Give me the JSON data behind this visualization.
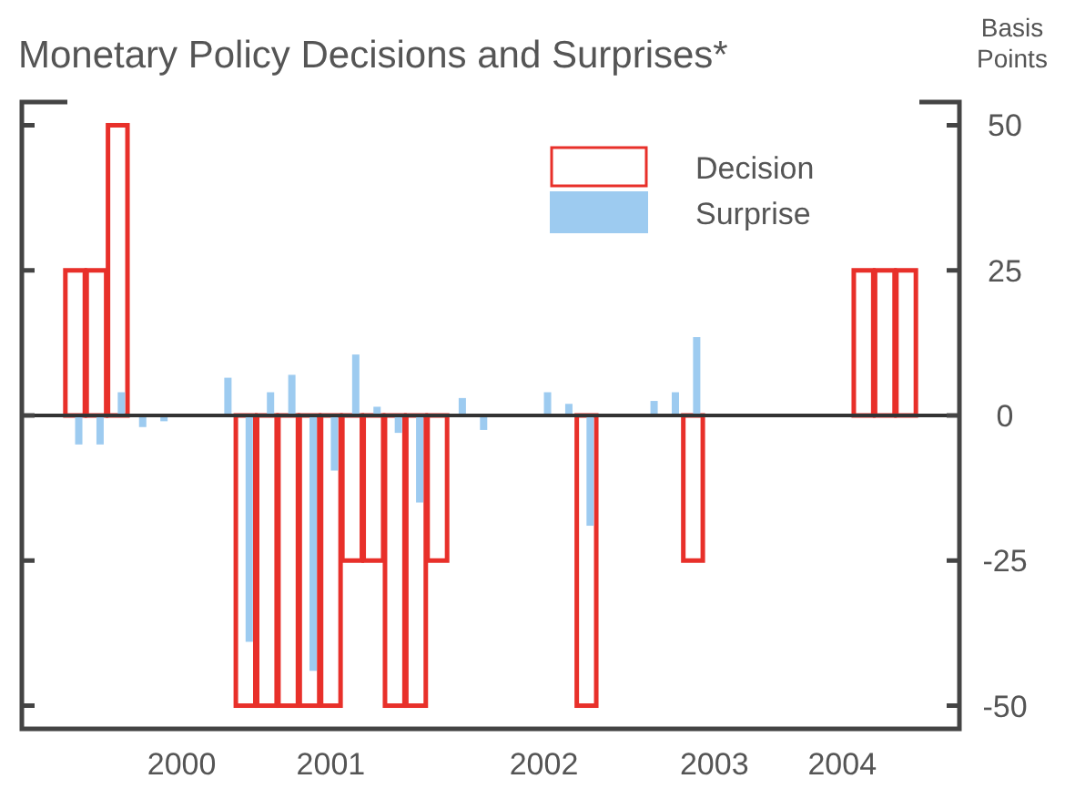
{
  "chart_data": {
    "type": "bar",
    "title": "Monetary Policy Decisions and Surprises*",
    "ylabel": "Basis Points",
    "categories": [
      null,
      null,
      null,
      null,
      null,
      null,
      null,
      "2000",
      null,
      null,
      null,
      null,
      null,
      null,
      "2001",
      null,
      null,
      null,
      null,
      null,
      null,
      null,
      null,
      null,
      "2002",
      null,
      null,
      null,
      null,
      null,
      null,
      null,
      "2003",
      null,
      null,
      null,
      null,
      null,
      "2004",
      null,
      null,
      null,
      null,
      null
    ],
    "series": [
      {
        "name": "Decision",
        "color": "#e8302a",
        "values": [
          null,
          null,
          25,
          25,
          50,
          null,
          null,
          null,
          null,
          null,
          -50,
          -50,
          -50,
          -50,
          -50,
          -25,
          -25,
          -50,
          -50,
          -25,
          null,
          null,
          null,
          null,
          null,
          null,
          -50,
          null,
          null,
          null,
          null,
          -25,
          null,
          null,
          null,
          null,
          null,
          null,
          null,
          25,
          25,
          25,
          null,
          null
        ]
      },
      {
        "name": "Surprise",
        "color": "#9dcbf0",
        "values": [
          null,
          null,
          -5,
          -5,
          4,
          -2,
          -1,
          null,
          null,
          6.5,
          -39,
          4,
          7,
          -44,
          -9.5,
          10.5,
          1.5,
          -3,
          -15,
          null,
          3,
          -2.5,
          null,
          null,
          4,
          2,
          -19,
          null,
          null,
          2.5,
          4,
          13.5,
          null,
          null,
          null,
          null,
          null,
          null,
          null,
          null,
          null,
          null,
          null,
          null
        ]
      }
    ],
    "ylim": [
      -54,
      54
    ],
    "yticks": [
      -50,
      -25,
      0,
      25,
      50
    ],
    "ref_lines": [
      {
        "axis": "y",
        "value": 0,
        "color": "#333333"
      }
    ],
    "legend": "top right"
  }
}
